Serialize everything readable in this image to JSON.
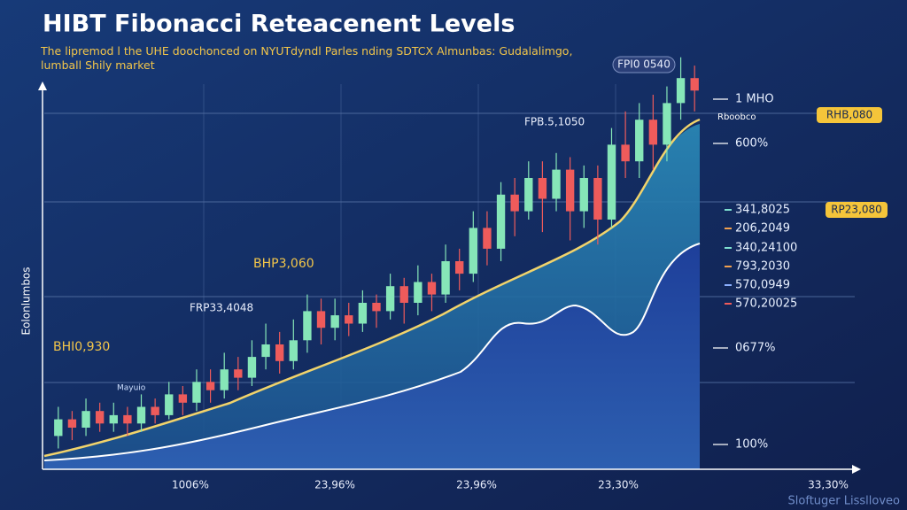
{
  "chart_data": {
    "type": "candlestick",
    "title": "HIBT Fibonacci Reteacenent Levels",
    "subtitle": "The lipremod l the UHE doochonced on NYUTdyndl Parles nding SDTCX Almunbas: Gudalalimgo, lumball Shily market",
    "y_label": "Eolonlumbos",
    "x_labels": [
      "1006%",
      "23,96%",
      "23,96%",
      "23,30%",
      "33,30%"
    ],
    "fib_labels": [
      "1 MHO",
      "600%",
      "341,8025",
      "206,2049",
      "340,24100",
      "793,2030",
      "570,0949",
      "570,20025",
      "0677%",
      "100%"
    ],
    "fib_sublabel": "Rboobco",
    "badges": [
      "RHB,080",
      "RP23,080"
    ],
    "annotations": [
      "FPI0 0540",
      "FPB.5,1050",
      "BHP3,060",
      "FRP33,4048",
      "BHI0,930",
      "Mayuio"
    ],
    "watermark": "Sloftuger Lisslloveo",
    "ylim": [
      0,
      100
    ],
    "up_color": "#86e6b8",
    "down_color": "#ee5b5b",
    "open": [
      8,
      12,
      10,
      14,
      11,
      13,
      11,
      15,
      13,
      18,
      16,
      21,
      19,
      24,
      22,
      27,
      30,
      26,
      31,
      38,
      34,
      37,
      35,
      40,
      38,
      44,
      40,
      45,
      42,
      50,
      47,
      58,
      53,
      66,
      62,
      70,
      65,
      72,
      62,
      70,
      60,
      78,
      74,
      84,
      78,
      88,
      94
    ],
    "close": [
      12,
      10,
      14,
      11,
      13,
      11,
      15,
      13,
      18,
      16,
      21,
      19,
      24,
      22,
      27,
      30,
      26,
      31,
      38,
      34,
      37,
      35,
      40,
      38,
      44,
      40,
      45,
      42,
      50,
      47,
      58,
      53,
      66,
      62,
      70,
      65,
      72,
      62,
      70,
      60,
      78,
      74,
      84,
      78,
      88,
      94,
      91
    ],
    "high": [
      15,
      14,
      17,
      16,
      16,
      15,
      18,
      17,
      21,
      20,
      24,
      24,
      28,
      27,
      31,
      35,
      33,
      36,
      42,
      41,
      41,
      40,
      43,
      42,
      47,
      46,
      49,
      47,
      54,
      53,
      62,
      62,
      69,
      70,
      74,
      74,
      76,
      75,
      73,
      73,
      82,
      86,
      88,
      90,
      92,
      99,
      97
    ],
    "low": [
      5,
      7,
      8,
      9,
      9,
      8,
      9,
      11,
      12,
      13,
      14,
      16,
      17,
      19,
      20,
      24,
      23,
      24,
      28,
      30,
      31,
      32,
      33,
      34,
      36,
      35,
      37,
      38,
      40,
      43,
      45,
      49,
      50,
      56,
      60,
      57,
      62,
      55,
      58,
      54,
      58,
      70,
      70,
      72,
      74,
      84,
      86
    ]
  }
}
